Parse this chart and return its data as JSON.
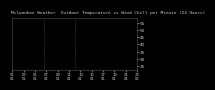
{
  "title": "Milwaukee Weather  Outdoor Temperature vs Wind Chill per Minute (24 Hours)",
  "bg_color": "#000000",
  "plot_bg": "#000000",
  "temp_color": "#ff0000",
  "wind_color": "#ff0000",
  "legend_blue": "#0000ff",
  "legend_red": "#ff0000",
  "ylim": [
    22,
    58
  ],
  "yticks": [
    25,
    30,
    35,
    40,
    45,
    50,
    55
  ],
  "title_fontsize": 3.2,
  "tick_fontsize": 3.0,
  "vline_color": "#888888",
  "vline_style": ":",
  "n_points": 1440,
  "xtick_labels": [
    "01\n01",
    "03\n01",
    "05\n01",
    "07\n01",
    "09\n01",
    "11\n01",
    "13\n01",
    "15\n01",
    "17\n01",
    "19\n01",
    "21\n01",
    "23\n01"
  ]
}
